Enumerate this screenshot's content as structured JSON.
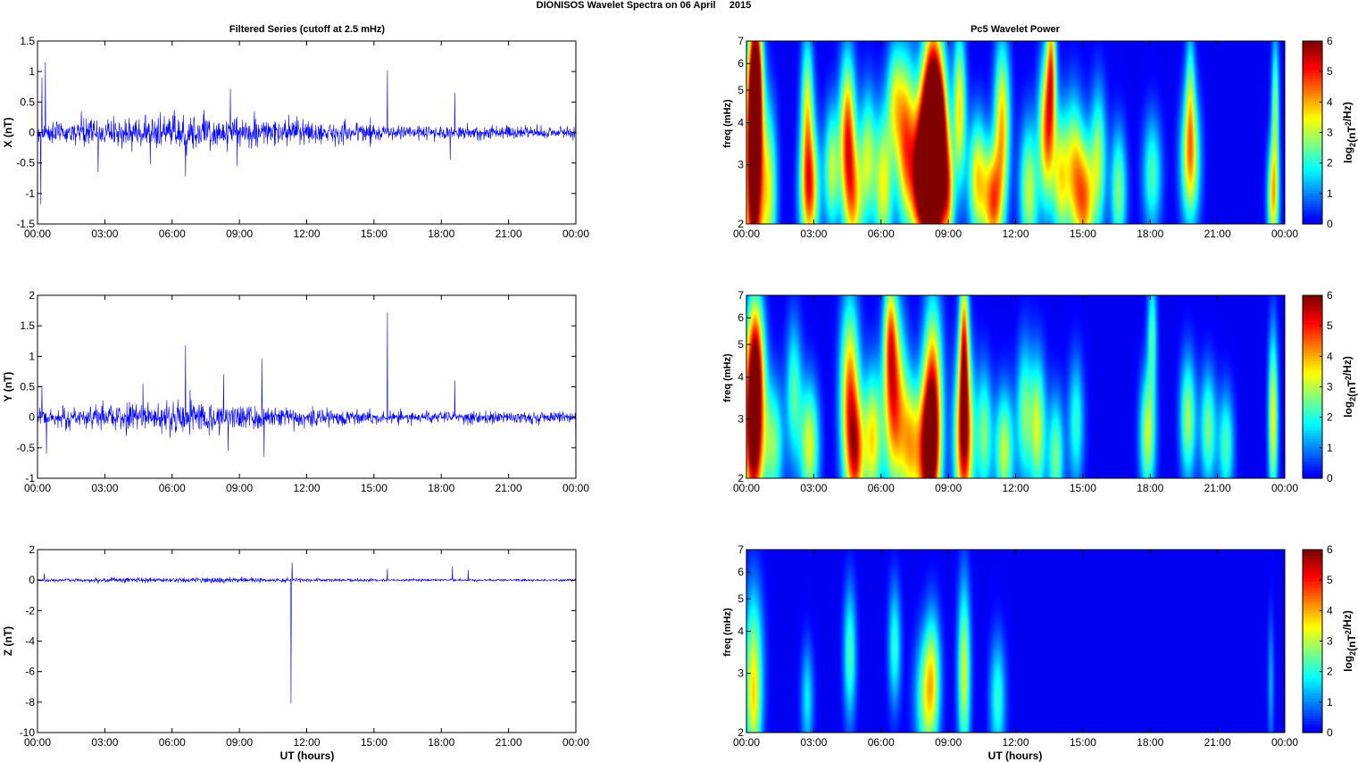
{
  "figure": {
    "title": "DIONISOS Wavelet Spectra on 06 April     2015",
    "left_title": "Filtered Series (cutoff at 2.5 mHz)",
    "right_title": "Pc5 Wavelet Power",
    "xlabel": "UT (hours)",
    "xticks": [
      "00:00",
      "03:00",
      "06:00",
      "09:00",
      "12:00",
      "15:00",
      "18:00",
      "21:00",
      "00:00"
    ],
    "colorbar_label": "log2(nT2/Hz)",
    "colorbar_ticks": [
      "0",
      "1",
      "2",
      "3",
      "4",
      "5",
      "6"
    ],
    "freq_label": "freq (mHz)",
    "freq_ticks": [
      "2",
      "3",
      "4",
      "5",
      "6",
      "7"
    ]
  },
  "chart_data": [
    {
      "type": "line",
      "name": "X",
      "ylabel": "X (nT)",
      "ylim": [
        -1.5,
        1.5
      ],
      "yticks": [
        -1.5,
        -1,
        -0.5,
        0,
        0.5,
        1,
        1.5
      ],
      "xlim_hours": [
        0,
        24
      ],
      "color": "#0000ff",
      "noise_amplitude": 0.14,
      "spikes": [
        [
          0.15,
          -1.18
        ],
        [
          0.35,
          1.15
        ],
        [
          0.2,
          0.9
        ],
        [
          2.7,
          -0.65
        ],
        [
          6.6,
          -0.72
        ],
        [
          8.6,
          0.72
        ],
        [
          8.9,
          -0.55
        ],
        [
          15.6,
          1.02
        ],
        [
          18.6,
          0.65
        ],
        [
          18.4,
          -0.45
        ],
        [
          24.0,
          0.88
        ]
      ]
    },
    {
      "type": "line",
      "name": "Y",
      "ylabel": "Y (nT)",
      "ylim": [
        -1,
        2
      ],
      "yticks": [
        -1,
        -0.5,
        0,
        0.5,
        1,
        1.5,
        2
      ],
      "xlim_hours": [
        0,
        24
      ],
      "color": "#0000ff",
      "noise_amplitude": 0.12,
      "spikes": [
        [
          0.2,
          0.52
        ],
        [
          0.4,
          -0.6
        ],
        [
          4.7,
          0.55
        ],
        [
          6.6,
          1.18
        ],
        [
          6.8,
          0.45
        ],
        [
          8.3,
          0.7
        ],
        [
          8.5,
          -0.55
        ],
        [
          10.0,
          0.96
        ],
        [
          10.1,
          -0.65
        ],
        [
          15.6,
          1.72
        ],
        [
          18.6,
          0.6
        ],
        [
          24.0,
          -0.75
        ]
      ]
    },
    {
      "type": "line",
      "name": "Z",
      "ylabel": "Z (nT)",
      "ylim": [
        -10,
        2
      ],
      "yticks": [
        -10,
        -8,
        -6,
        -4,
        -2,
        0,
        2
      ],
      "xlim_hours": [
        0,
        24
      ],
      "color": "#0000ff",
      "noise_amplitude": 0.09,
      "spikes": [
        [
          0.3,
          0.45
        ],
        [
          11.35,
          1.15
        ],
        [
          11.3,
          -8.1
        ],
        [
          15.6,
          0.75
        ],
        [
          18.5,
          0.9
        ],
        [
          19.2,
          0.65
        ],
        [
          24.0,
          0.5
        ]
      ]
    },
    {
      "type": "heatmap",
      "name": "X wavelet power",
      "ylabel": "freq (mHz)",
      "ylim_mHz": [
        2,
        7
      ],
      "ylog": true,
      "zlim": [
        0,
        6
      ],
      "colormap": "jet",
      "blobs": [
        [
          0.3,
          2.2,
          0.3,
          2.6,
          5.2
        ],
        [
          0.35,
          4.2,
          0.25,
          2.1,
          6.4
        ],
        [
          0.4,
          6.2,
          0.2,
          1.4,
          3.5
        ],
        [
          1.0,
          2.5,
          0.25,
          2.3,
          3.0
        ],
        [
          2.8,
          2.5,
          0.3,
          1.6,
          4.6
        ],
        [
          2.7,
          4.5,
          0.2,
          1.9,
          3.0
        ],
        [
          3.8,
          2.9,
          0.25,
          1.6,
          3.0
        ],
        [
          4.5,
          3.7,
          0.25,
          2.1,
          4.6
        ],
        [
          4.8,
          2.3,
          0.3,
          1.6,
          3.2
        ],
        [
          5.4,
          3.2,
          0.25,
          1.7,
          2.8
        ],
        [
          6.1,
          2.6,
          0.3,
          2.0,
          3.4
        ],
        [
          6.6,
          4.7,
          0.25,
          1.5,
          2.5
        ],
        [
          7.1,
          3.5,
          0.3,
          2.3,
          4.3
        ],
        [
          7.7,
          2.6,
          0.3,
          1.5,
          3.5
        ],
        [
          8.0,
          3.3,
          0.35,
          2.1,
          5.2
        ],
        [
          8.3,
          4.4,
          0.3,
          2.7,
          4.9
        ],
        [
          8.6,
          3.5,
          0.3,
          2.1,
          5.5
        ],
        [
          8.3,
          2.3,
          0.3,
          1.7,
          4.6
        ],
        [
          9.0,
          2.4,
          0.2,
          1.4,
          3.1
        ],
        [
          9.5,
          4.4,
          0.2,
          2.1,
          3.6
        ],
        [
          10.3,
          2.7,
          0.3,
          1.6,
          3.6
        ],
        [
          11.0,
          2.3,
          0.3,
          1.4,
          4.3
        ],
        [
          11.4,
          4.0,
          0.25,
          2.2,
          3.8
        ],
        [
          12.6,
          2.5,
          0.3,
          1.8,
          3.1
        ],
        [
          13.4,
          3.8,
          0.25,
          2.0,
          4.4
        ],
        [
          13.6,
          6.0,
          0.15,
          1.6,
          3.4
        ],
        [
          14.0,
          2.7,
          0.25,
          1.7,
          3.1
        ],
        [
          14.6,
          2.9,
          0.3,
          1.9,
          3.3
        ],
        [
          15.1,
          2.3,
          0.3,
          1.6,
          3.8
        ],
        [
          15.7,
          3.1,
          0.25,
          1.9,
          2.8
        ],
        [
          16.6,
          2.5,
          0.25,
          1.6,
          2.7
        ],
        [
          18.1,
          2.8,
          0.3,
          1.5,
          2.3
        ],
        [
          19.8,
          3.1,
          0.3,
          1.7,
          3.8
        ],
        [
          19.8,
          5.0,
          0.15,
          1.7,
          2.0
        ],
        [
          23.5,
          2.4,
          0.18,
          1.4,
          3.7
        ],
        [
          23.6,
          4.5,
          0.12,
          1.9,
          2.6
        ]
      ]
    },
    {
      "type": "heatmap",
      "name": "Y wavelet power",
      "ylabel": "freq (mHz)",
      "ylim_mHz": [
        2,
        7
      ],
      "ylog": true,
      "zlim": [
        0,
        6
      ],
      "colormap": "jet",
      "blobs": [
        [
          0.3,
          3.3,
          0.35,
          2.2,
          4.9
        ],
        [
          0.4,
          4.6,
          0.25,
          1.8,
          3.3
        ],
        [
          0.3,
          2.2,
          0.3,
          1.6,
          3.0
        ],
        [
          1.2,
          2.5,
          0.3,
          1.6,
          2.6
        ],
        [
          2.8,
          2.5,
          0.3,
          1.6,
          3.3
        ],
        [
          2.1,
          3.6,
          0.25,
          1.9,
          2.3
        ],
        [
          4.6,
          3.4,
          0.3,
          2.7,
          4.6
        ],
        [
          4.9,
          2.3,
          0.25,
          1.5,
          3.3
        ],
        [
          5.6,
          2.6,
          0.3,
          1.8,
          3.6
        ],
        [
          6.6,
          3.3,
          0.35,
          2.5,
          4.6
        ],
        [
          6.4,
          5.4,
          0.2,
          1.6,
          2.9
        ],
        [
          7.3,
          2.5,
          0.3,
          1.7,
          3.3
        ],
        [
          8.1,
          2.3,
          0.35,
          1.9,
          5.5
        ],
        [
          8.3,
          3.6,
          0.3,
          2.6,
          4.3
        ],
        [
          9.7,
          2.6,
          0.3,
          2.3,
          5.5
        ],
        [
          9.7,
          5.0,
          0.15,
          2.1,
          4.1
        ],
        [
          10.6,
          2.7,
          0.25,
          1.7,
          2.6
        ],
        [
          11.5,
          2.4,
          0.3,
          1.6,
          3.1
        ],
        [
          12.4,
          3.1,
          0.25,
          1.9,
          2.5
        ],
        [
          13.0,
          2.8,
          0.25,
          1.9,
          3.1
        ],
        [
          13.8,
          2.3,
          0.25,
          1.6,
          2.6
        ],
        [
          14.7,
          2.9,
          0.25,
          1.7,
          2.1
        ],
        [
          17.9,
          2.7,
          0.25,
          1.6,
          3.1
        ],
        [
          18.1,
          5.4,
          0.15,
          1.6,
          2.2
        ],
        [
          19.7,
          3.0,
          0.25,
          1.6,
          2.9
        ],
        [
          20.6,
          2.8,
          0.25,
          1.5,
          2.6
        ],
        [
          21.4,
          2.5,
          0.25,
          1.4,
          2.3
        ],
        [
          23.5,
          3.0,
          0.15,
          2.3,
          3.5
        ]
      ]
    },
    {
      "type": "heatmap",
      "name": "Z wavelet power",
      "ylabel": "freq (mHz)",
      "ylim_mHz": [
        2,
        7
      ],
      "ylog": true,
      "zlim": [
        0,
        6
      ],
      "colormap": "jet",
      "blobs": [
        [
          0.3,
          3.3,
          0.3,
          2.1,
          2.6
        ],
        [
          0.3,
          2.2,
          0.25,
          1.5,
          1.9
        ],
        [
          2.7,
          2.5,
          0.2,
          1.4,
          1.7
        ],
        [
          4.6,
          3.4,
          0.2,
          1.8,
          2.3
        ],
        [
          6.6,
          3.6,
          0.2,
          1.6,
          2.1
        ],
        [
          8.0,
          2.5,
          0.35,
          1.7,
          2.6
        ],
        [
          8.3,
          3.0,
          0.25,
          1.7,
          2.2
        ],
        [
          9.7,
          3.0,
          0.2,
          2.5,
          3.2
        ],
        [
          11.2,
          2.5,
          0.25,
          1.6,
          2.1
        ],
        [
          23.4,
          2.8,
          0.1,
          1.8,
          1.2
        ]
      ]
    }
  ]
}
